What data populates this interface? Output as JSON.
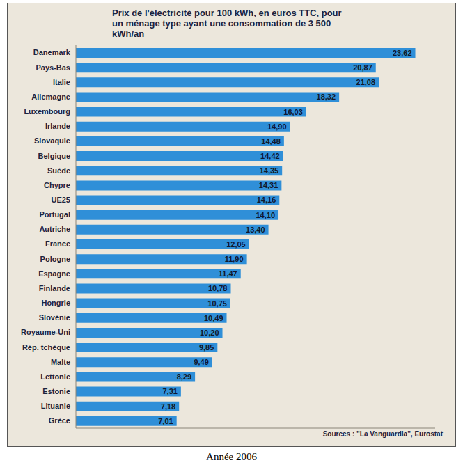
{
  "chart_data": {
    "type": "bar",
    "orientation": "horizontal",
    "title": "Prix de l'électricité pour 100 kWh, en euros TTC, pour un ménage type ayant une consommation de 3 500 kWh/an",
    "source": "Sources : \"La Vanguardia\", Eurostat",
    "caption": "Année 2006",
    "categories": [
      "Danemark",
      "Pays-Bas",
      "Italie",
      "Allemagne",
      "Luxembourg",
      "Irlande",
      "Slovaquie",
      "Belgique",
      "Suède",
      "Chypre",
      "UE25",
      "Portugal",
      "Autriche",
      "France",
      "Pologne",
      "Espagne",
      "Finlande",
      "Hongrie",
      "Slovénie",
      "Royaume-Uni",
      "Rép. tchèque",
      "Malte",
      "Lettonie",
      "Estonie",
      "Lituanie",
      "Grèce"
    ],
    "values": [
      23.62,
      20.87,
      21.08,
      18.32,
      16.03,
      14.9,
      14.48,
      14.42,
      14.35,
      14.31,
      14.16,
      14.1,
      13.4,
      12.05,
      11.9,
      11.47,
      10.78,
      10.75,
      10.49,
      10.2,
      9.85,
      9.49,
      8.29,
      7.31,
      7.18,
      7.01
    ],
    "value_labels": [
      "23,62",
      "20,87",
      "21,08",
      "18,32",
      "16,03",
      "14,90",
      "14,48",
      "14,42",
      "14,35",
      "14,31",
      "14,16",
      "14,10",
      "13,40",
      "12,05",
      "11,90",
      "11,47",
      "10,78",
      "10,75",
      "10,49",
      "10,20",
      "9,85",
      "9,49",
      "8,29",
      "7,31",
      "7,18",
      "7,01"
    ],
    "color": "#2f8fd8",
    "xlim": [
      0,
      25
    ],
    "data_labels": true,
    "tick_labels": "y",
    "grid": false
  }
}
